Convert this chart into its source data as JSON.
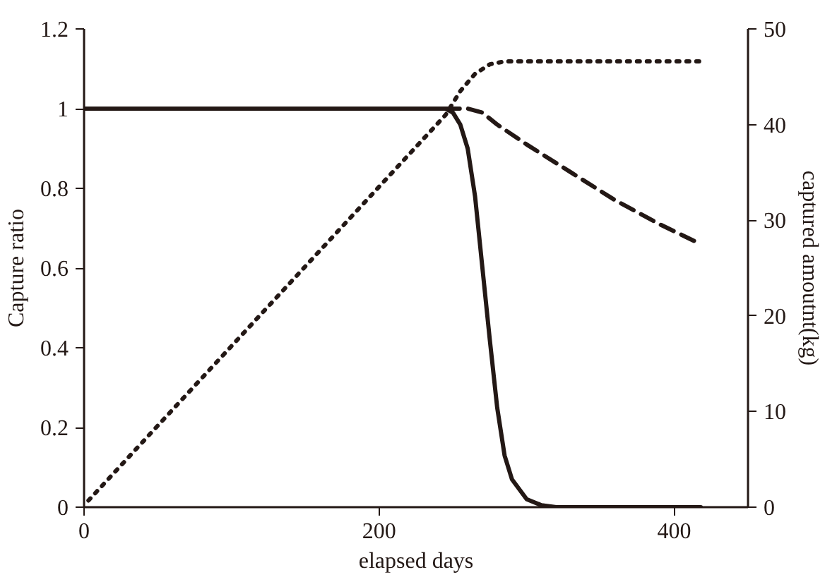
{
  "chart_data": {
    "type": "line",
    "xlabel": "elapsed days",
    "ylabel": "Capture ratio",
    "y2label": "captured amoutnt(kg)",
    "xlim": [
      0,
      450
    ],
    "xticks": [
      0,
      200,
      400
    ],
    "ylim": [
      0,
      1.2
    ],
    "yticks": [
      0,
      0.2,
      0.4,
      0.6,
      0.8,
      1,
      1.2
    ],
    "y2lim": [
      0,
      50
    ],
    "y2ticks": [
      0,
      10,
      20,
      30,
      40,
      50
    ],
    "grid": false,
    "marker": "none",
    "series": [
      {
        "color": "#231815",
        "line_style": "solid",
        "x": [
          0,
          245,
          250,
          255,
          260,
          265,
          270,
          275,
          280,
          285,
          290,
          300,
          310,
          320,
          418
        ],
        "values": [
          1,
          1,
          0.99,
          0.96,
          0.9,
          0.78,
          0.6,
          0.42,
          0.25,
          0.13,
          0.07,
          0.02,
          0.005,
          0,
          0
        ]
      },
      {
        "color": "#231815",
        "line_style": "dashed",
        "x": [
          245,
          260,
          270,
          280,
          300,
          330,
          360,
          390,
          418
        ],
        "values": [
          1,
          1,
          0.99,
          0.96,
          0.91,
          0.84,
          0.77,
          0.71,
          0.66
        ]
      },
      {
        "color": "#231815",
        "line_style": "dotted",
        "axis": "y2",
        "x": [
          3,
          245,
          255,
          265,
          275,
          285,
          418
        ],
        "values": [
          0.7,
          41,
          43.5,
          45.3,
          46.3,
          46.6,
          46.6
        ]
      }
    ]
  }
}
